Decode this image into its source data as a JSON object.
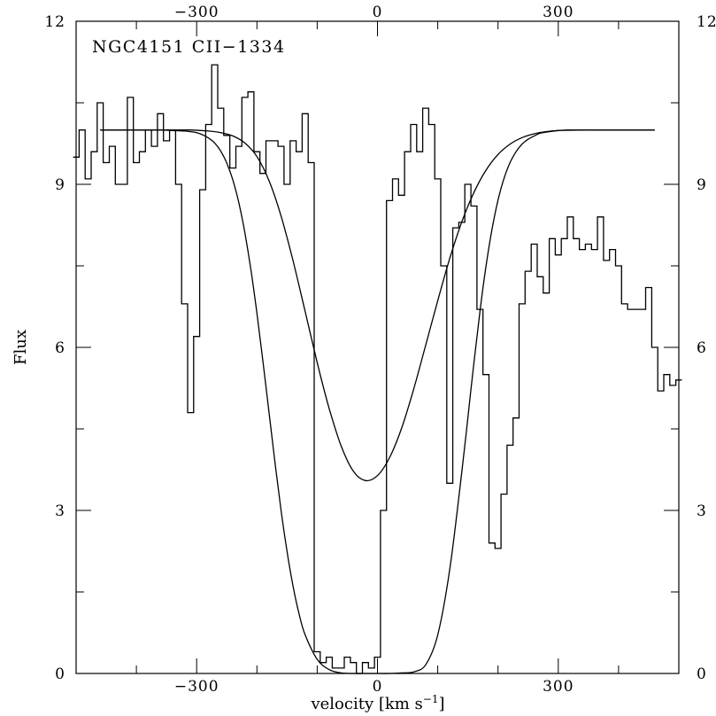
{
  "chart_data": {
    "type": "line",
    "title": "NGC4151 CII−1334",
    "xlabel": "velocity [km s",
    "xlabel_sup": "−1",
    "xlabel_close": "]",
    "ylabel": "Flux",
    "xlim": [
      -500,
      500
    ],
    "ylim": [
      0,
      12
    ],
    "x_ticks": [
      {
        "value": -300,
        "label": "−300"
      },
      {
        "value": 0,
        "label": "0"
      },
      {
        "value": 300,
        "label": "300"
      }
    ],
    "y_ticks": [
      {
        "value": 0,
        "label": "0"
      },
      {
        "value": 3,
        "label": "3"
      },
      {
        "value": 6,
        "label": "6"
      },
      {
        "value": 9,
        "label": "9"
      },
      {
        "value": 12,
        "label": "12"
      }
    ],
    "x_minor_step": 100,
    "y_minor_step": 1.5,
    "grid": false,
    "legend": "none",
    "series": [
      {
        "style": "histogram",
        "x": [
          -500,
          -490,
          -480,
          -470,
          -460,
          -450,
          -440,
          -430,
          -420,
          -410,
          -400,
          -390,
          -380,
          -370,
          -360,
          -350,
          -340,
          -330,
          -320,
          -310,
          -300,
          -290,
          -280,
          -270,
          -260,
          -250,
          -240,
          -230,
          -220,
          -210,
          -200,
          -190,
          -180,
          -170,
          -160,
          -150,
          -140,
          -130,
          -120,
          -110,
          -100,
          -90,
          -80,
          -70,
          -60,
          -50,
          -40,
          -30,
          -20,
          -10,
          0,
          10,
          20,
          30,
          40,
          50,
          60,
          70,
          80,
          90,
          100,
          110,
          120,
          130,
          140,
          150,
          160,
          170,
          180,
          190,
          200,
          210,
          220,
          230,
          240,
          250,
          260,
          270,
          280,
          290,
          300,
          310,
          320,
          330,
          340,
          350,
          360,
          370,
          380,
          390,
          400,
          410,
          420,
          430,
          440,
          450,
          460,
          470,
          480,
          490,
          500
        ],
        "y": [
          9.5,
          10.0,
          9.1,
          9.6,
          10.5,
          9.4,
          9.7,
          9.0,
          9.0,
          10.6,
          9.4,
          9.6,
          10.0,
          9.7,
          10.3,
          9.8,
          10.0,
          9.0,
          6.8,
          4.8,
          6.2,
          8.9,
          10.1,
          11.2,
          10.4,
          9.9,
          9.3,
          9.7,
          10.6,
          10.7,
          9.6,
          9.2,
          9.8,
          9.8,
          9.7,
          9.0,
          9.8,
          9.6,
          10.3,
          9.4,
          0.4,
          0.2,
          0.3,
          0.1,
          0.1,
          0.3,
          0.2,
          0.0,
          0.2,
          0.1,
          0.3,
          3.0,
          8.7,
          9.1,
          8.8,
          9.6,
          10.1,
          9.6,
          10.4,
          10.1,
          9.1,
          7.5,
          3.5,
          8.2,
          8.3,
          9.0,
          8.6,
          6.7,
          5.5,
          2.4,
          2.3,
          3.3,
          4.2,
          4.7,
          6.8,
          7.4,
          7.9,
          7.3,
          7.0,
          8.0,
          7.7,
          8.0,
          8.4,
          8.0,
          7.8,
          7.9,
          7.8,
          8.4,
          7.6,
          7.8,
          7.5,
          6.8,
          6.7,
          6.7,
          6.7,
          7.1,
          6.0,
          5.2,
          5.5,
          5.3,
          5.4
        ]
      },
      {
        "style": "line",
        "x": [
          -460,
          -430,
          -400,
          -370,
          -340,
          -310,
          -280,
          -260,
          -240,
          -220,
          -200,
          -180,
          -160,
          -140,
          -120,
          -100,
          -80,
          -60,
          -40,
          -20,
          0,
          20,
          40,
          60,
          80,
          100,
          120,
          140,
          160,
          180,
          200,
          220,
          240,
          260,
          280,
          300,
          340,
          380,
          420,
          460
        ],
        "y": [
          10.0,
          10.0,
          10.0,
          10.0,
          10.0,
          10.0,
          9.98,
          9.95,
          9.89,
          9.76,
          9.51,
          9.07,
          8.42,
          7.59,
          6.66,
          5.72,
          4.87,
          4.18,
          3.72,
          3.55,
          3.64,
          3.97,
          4.51,
          5.23,
          6.04,
          6.86,
          7.64,
          8.31,
          8.85,
          9.26,
          9.55,
          9.74,
          9.86,
          9.93,
          9.97,
          9.99,
          10.0,
          10.0,
          10.0,
          10.0
        ]
      },
      {
        "style": "line",
        "x": [
          -460,
          -400,
          -360,
          -340,
          -320,
          -300,
          -290,
          -280,
          -270,
          -260,
          -250,
          -240,
          -230,
          -220,
          -210,
          -200,
          -190,
          -180,
          -170,
          -160,
          -150,
          -140,
          -130,
          -120,
          -100,
          -80,
          -60,
          -40,
          -20,
          0,
          20,
          40,
          60,
          80,
          100,
          120,
          140,
          150,
          160,
          170,
          180,
          190,
          200,
          210,
          220,
          230,
          240,
          250,
          260,
          270,
          280,
          300,
          320,
          340,
          380,
          460
        ],
        "y": [
          10.0,
          10.0,
          10.0,
          9.99,
          9.98,
          9.95,
          9.91,
          9.85,
          9.76,
          9.61,
          9.39,
          9.08,
          8.66,
          8.11,
          7.43,
          6.63,
          5.74,
          4.81,
          3.88,
          3.01,
          2.24,
          1.6,
          1.09,
          0.71,
          0.26,
          0.07,
          0.01,
          0.0,
          0.0,
          0.0,
          0.0,
          0.01,
          0.03,
          0.16,
          0.71,
          1.92,
          3.71,
          4.71,
          5.72,
          6.66,
          7.49,
          8.17,
          8.71,
          9.11,
          9.4,
          9.6,
          9.74,
          9.83,
          9.89,
          9.94,
          9.96,
          9.99,
          10.0,
          10.0,
          10.0,
          10.0
        ]
      }
    ]
  }
}
